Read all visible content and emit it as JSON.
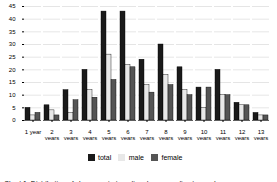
{
  "chart_data": {
    "type": "bar",
    "caption": "Chart 1. Distribution of sleep respiratory disorders according to gender\nand age.",
    "categories": [
      "1 year",
      "2\nyears",
      "3\nyears",
      "4\nyears",
      "5\nyears",
      "6\nyears",
      "7\nyears",
      "8\nyears",
      "9\nyears",
      "10\nyears",
      "11\nyears",
      "12\nyears",
      "13\nyears"
    ],
    "series": [
      {
        "name": "total",
        "color": "#1a1a1a",
        "values": [
          5,
          6,
          12,
          20,
          43,
          43,
          24,
          30,
          21,
          13,
          20,
          7,
          3
        ]
      },
      {
        "name": "male",
        "color": "#e8e8e8",
        "values": [
          2,
          4,
          3,
          12,
          26,
          22,
          14,
          18,
          12,
          5,
          10,
          6,
          2
        ]
      },
      {
        "name": "female",
        "color": "#555555",
        "values": [
          3,
          2,
          8,
          9,
          16,
          21,
          11,
          14,
          10,
          13,
          10,
          6,
          2
        ]
      }
    ],
    "ylim": [
      0,
      45
    ],
    "yticks": [
      0,
      5,
      10,
      15,
      20,
      25,
      30,
      35,
      40,
      45
    ],
    "grid": true,
    "legend": "bottom"
  }
}
